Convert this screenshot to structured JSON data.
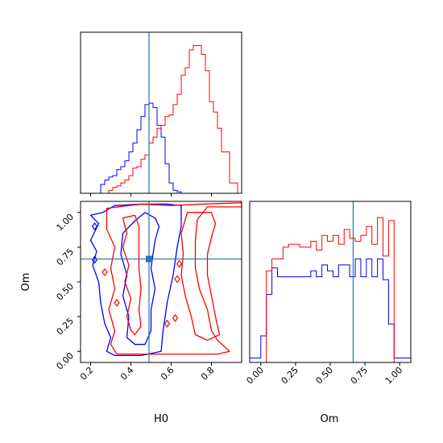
{
  "chart_data": {
    "type": "corner",
    "parameters": [
      "H0",
      "Om"
    ],
    "truth": {
      "H0": 0.49,
      "Om": 0.665
    },
    "colors": {
      "series_a": "#0000ff",
      "series_b": "#ff0000",
      "truth": "#1f77b4",
      "axes": "#000000"
    },
    "panels": [
      {
        "id": "hist-h0",
        "type": "histogram",
        "xlim": [
          0.15,
          0.95
        ],
        "ylim": [
          0,
          1.09
        ],
        "x_tick_values": [
          0.2,
          0.4,
          0.6,
          0.8
        ],
        "x_tick_labels": [],
        "y_tick_labels": [],
        "truth_x": 0.49,
        "series": [
          {
            "key": "series_a",
            "bin_start": 0.15,
            "bin_width": 0.02,
            "values": [
              0.0,
              0.0,
              0.0,
              0.0,
              0.0,
              0.06,
              0.09,
              0.11,
              0.12,
              0.16,
              0.18,
              0.22,
              0.28,
              0.34,
              0.43,
              0.52,
              0.6,
              0.61,
              0.58,
              0.46,
              0.38,
              0.2,
              0.07,
              0.02,
              0.01,
              0.0,
              0.0,
              0.0,
              0.0,
              0.0,
              0.0,
              0.0,
              0.0,
              0.0,
              0.0,
              0.0,
              0.0,
              0.0,
              0.0,
              0.0
            ]
          },
          {
            "key": "series_b",
            "bin_start": 0.15,
            "bin_width": 0.02,
            "values": [
              0.0,
              0.0,
              0.0,
              0.0,
              0.0,
              0.0,
              0.0,
              0.02,
              0.04,
              0.05,
              0.07,
              0.09,
              0.12,
              0.17,
              0.18,
              0.23,
              0.26,
              0.34,
              0.38,
              0.44,
              0.46,
              0.52,
              0.53,
              0.6,
              0.67,
              0.8,
              0.85,
              0.97,
              1.0,
              1.0,
              0.94,
              0.83,
              0.62,
              0.55,
              0.44,
              0.28,
              0.28,
              0.07,
              0.07,
              0.0
            ]
          }
        ]
      },
      {
        "id": "hist-om",
        "type": "histogram",
        "xlim": [
          -0.08,
          1.08
        ],
        "ylim": [
          0,
          1.09
        ],
        "x_tick_values": [
          0.0,
          0.25,
          0.5,
          0.75,
          1.0
        ],
        "x_tick_labels": [
          "0.00",
          "0.25",
          "0.50",
          "0.75",
          "1.00"
        ],
        "y_tick_labels": [],
        "xlabel": "Om",
        "truth_x": 0.665,
        "series": [
          {
            "key": "series_a",
            "bin_start": -0.08,
            "bin_width": 0.04,
            "values": [
              0.03,
              0.03,
              0.18,
              0.46,
              0.64,
              0.58,
              0.58,
              0.58,
              0.58,
              0.58,
              0.58,
              0.62,
              0.58,
              0.66,
              0.62,
              0.58,
              0.66,
              0.66,
              0.58,
              0.7,
              0.58,
              0.7,
              0.58,
              0.7,
              0.56,
              0.26,
              0.03,
              0.03,
              0.03
            ]
          },
          {
            "key": "series_b",
            "bin_start": -0.08,
            "bin_width": 0.04,
            "values": [
              0.0,
              0.0,
              0.0,
              0.62,
              0.7,
              0.7,
              0.78,
              0.8,
              0.8,
              0.78,
              0.78,
              0.82,
              0.76,
              0.86,
              0.82,
              0.86,
              0.8,
              0.9,
              0.84,
              0.82,
              0.86,
              0.92,
              0.8,
              0.98,
              0.72,
              0.96,
              0.0,
              0.0,
              0.0
            ]
          }
        ]
      },
      {
        "id": "contour-h0-om",
        "type": "contour",
        "xlim": [
          0.15,
          0.95
        ],
        "ylim": [
          -0.08,
          1.08
        ],
        "x_tick_values": [
          0.2,
          0.4,
          0.6,
          0.8
        ],
        "x_tick_labels": [
          "0.2",
          "0.4",
          "0.6",
          "0.8"
        ],
        "y_tick_values": [
          0.0,
          0.25,
          0.5,
          0.75,
          1.0
        ],
        "y_tick_labels": [
          "0.00",
          "0.25",
          "0.50",
          "0.75",
          "1.00"
        ],
        "xlabel": "H0",
        "ylabel": "Om",
        "truth_point": [
          0.49,
          0.665
        ],
        "contours": [
          {
            "key": "series_a",
            "level": "outer",
            "points": [
              [
                0.26,
                1.0
              ],
              [
                0.32,
                1.05
              ],
              [
                0.45,
                1.06
              ],
              [
                0.58,
                1.06
              ],
              [
                0.65,
                1.05
              ],
              [
                0.65,
                0.9
              ],
              [
                0.63,
                0.75
              ],
              [
                0.61,
                0.55
              ],
              [
                0.58,
                0.35
              ],
              [
                0.56,
                0.15
              ],
              [
                0.55,
                0.0
              ],
              [
                0.45,
                -0.03
              ],
              [
                0.32,
                -0.03
              ],
              [
                0.28,
                0.0
              ],
              [
                0.3,
                0.1
              ],
              [
                0.27,
                0.2
              ],
              [
                0.25,
                0.35
              ],
              [
                0.24,
                0.5
              ],
              [
                0.21,
                0.62
              ],
              [
                0.23,
                0.72
              ],
              [
                0.2,
                0.8
              ],
              [
                0.24,
                0.92
              ],
              [
                0.2,
                0.98
              ],
              [
                0.26,
                1.0
              ]
            ]
          },
          {
            "key": "series_a",
            "level": "inner",
            "points": [
              [
                0.42,
                0.94
              ],
              [
                0.47,
                1.0
              ],
              [
                0.52,
                0.96
              ],
              [
                0.54,
                0.9
              ],
              [
                0.52,
                0.8
              ],
              [
                0.5,
                0.6
              ],
              [
                0.52,
                0.45
              ],
              [
                0.5,
                0.3
              ],
              [
                0.5,
                0.15
              ],
              [
                0.47,
                0.05
              ],
              [
                0.42,
                0.05
              ],
              [
                0.38,
                0.1
              ],
              [
                0.39,
                0.25
              ],
              [
                0.36,
                0.4
              ],
              [
                0.38,
                0.55
              ],
              [
                0.35,
                0.7
              ],
              [
                0.36,
                0.85
              ],
              [
                0.42,
                0.94
              ]
            ]
          },
          {
            "key": "series_b",
            "level": "outer",
            "points": [
              [
                0.28,
                1.03
              ],
              [
                0.45,
                1.06
              ],
              [
                0.6,
                1.05
              ],
              [
                0.75,
                1.06
              ],
              [
                0.95,
                1.07
              ],
              [
                0.95,
                1.04
              ],
              [
                0.78,
                1.04
              ],
              [
                0.73,
                0.95
              ],
              [
                0.72,
                0.8
              ],
              [
                0.72,
                0.6
              ],
              [
                0.74,
                0.45
              ],
              [
                0.78,
                0.3
              ],
              [
                0.8,
                0.15
              ],
              [
                0.83,
                0.08
              ],
              [
                0.89,
                0.0
              ],
              [
                0.83,
                -0.02
              ],
              [
                0.7,
                -0.02
              ],
              [
                0.6,
                -0.02
              ],
              [
                0.5,
                -0.02
              ],
              [
                0.4,
                -0.02
              ],
              [
                0.33,
                -0.02
              ],
              [
                0.3,
                0.05
              ],
              [
                0.32,
                0.15
              ],
              [
                0.29,
                0.3
              ],
              [
                0.32,
                0.45
              ],
              [
                0.3,
                0.6
              ],
              [
                0.32,
                0.75
              ],
              [
                0.28,
                0.88
              ],
              [
                0.28,
                1.03
              ]
            ]
          },
          {
            "key": "series_b",
            "level": "inner",
            "points": [
              [
                0.36,
                0.96
              ],
              [
                0.42,
                0.98
              ],
              [
                0.44,
                0.9
              ],
              [
                0.44,
                0.75
              ],
              [
                0.44,
                0.6
              ],
              [
                0.45,
                0.45
              ],
              [
                0.44,
                0.3
              ],
              [
                0.45,
                0.18
              ],
              [
                0.42,
                0.12
              ],
              [
                0.4,
                0.15
              ],
              [
                0.38,
                0.25
              ],
              [
                0.4,
                0.38
              ],
              [
                0.37,
                0.5
              ],
              [
                0.39,
                0.62
              ],
              [
                0.36,
                0.75
              ],
              [
                0.38,
                0.85
              ],
              [
                0.36,
                0.96
              ]
            ]
          },
          {
            "key": "series_b",
            "level": "inner",
            "points": [
              [
                0.68,
                1.0
              ],
              [
                0.8,
                1.0
              ],
              [
                0.82,
                0.92
              ],
              [
                0.8,
                0.82
              ],
              [
                0.78,
                0.7
              ],
              [
                0.78,
                0.55
              ],
              [
                0.8,
                0.4
              ],
              [
                0.82,
                0.25
              ],
              [
                0.84,
                0.12
              ],
              [
                0.78,
                0.08
              ],
              [
                0.72,
                0.12
              ],
              [
                0.7,
                0.25
              ],
              [
                0.67,
                0.4
              ],
              [
                0.65,
                0.55
              ],
              [
                0.66,
                0.7
              ],
              [
                0.65,
                0.85
              ],
              [
                0.68,
                1.0
              ]
            ]
          }
        ],
        "markers": [
          {
            "key": "series_a",
            "at": [
              0.22,
              0.9
            ]
          },
          {
            "key": "series_a",
            "at": [
              0.22,
              0.66
            ]
          },
          {
            "key": "series_b",
            "at": [
              0.27,
              0.57
            ]
          },
          {
            "key": "series_b",
            "at": [
              0.33,
              0.35
            ]
          },
          {
            "key": "series_b",
            "at": [
              0.58,
              0.2
            ]
          },
          {
            "key": "series_b",
            "at": [
              0.63,
              0.52
            ]
          },
          {
            "key": "series_b",
            "at": [
              0.64,
              0.63
            ]
          },
          {
            "key": "series_b",
            "at": [
              0.62,
              0.24
            ]
          }
        ]
      }
    ]
  }
}
